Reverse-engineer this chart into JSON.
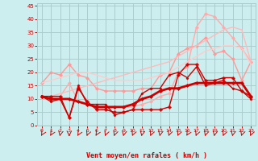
{
  "x": [
    0,
    1,
    2,
    3,
    4,
    5,
    6,
    7,
    8,
    9,
    10,
    11,
    12,
    13,
    14,
    15,
    16,
    17,
    18,
    19,
    20,
    21,
    22,
    23
  ],
  "series": [
    {
      "name": "line1_light_pink",
      "color": "#ff9999",
      "lw": 1.0,
      "marker": "D",
      "ms": 2.0,
      "y": [
        16,
        20,
        19,
        23,
        19,
        18,
        14,
        13,
        13,
        13,
        13,
        14,
        14,
        19,
        20,
        27,
        29,
        30,
        33,
        27,
        28,
        25,
        17,
        24
      ]
    },
    {
      "name": "line2_light_peak",
      "color": "#ffaaaa",
      "lw": 1.0,
      "marker": "D",
      "ms": 2.0,
      "y": [
        11,
        11,
        11,
        16,
        9,
        8,
        7,
        6,
        7,
        7,
        7,
        8,
        9,
        11,
        12,
        20,
        22,
        37,
        42,
        41,
        37,
        33,
        29,
        24
      ]
    },
    {
      "name": "line3_trend_upper",
      "color": "#ffbbbb",
      "lw": 1.0,
      "marker": null,
      "ms": 0,
      "y": [
        10,
        11,
        12,
        13,
        14,
        15,
        16,
        17,
        18,
        19,
        20,
        21,
        22,
        23,
        24,
        26,
        28,
        30,
        32,
        34,
        36,
        37,
        36,
        24
      ]
    },
    {
      "name": "line4_trend_lower",
      "color": "#ffcccc",
      "lw": 1.0,
      "marker": null,
      "ms": 0,
      "y": [
        16,
        17,
        18,
        19,
        20,
        20,
        19,
        18,
        17,
        17,
        17,
        17,
        18,
        19,
        20,
        22,
        24,
        26,
        28,
        29,
        30,
        30,
        29,
        23
      ]
    },
    {
      "name": "line5_dark_thick",
      "color": "#cc0000",
      "lw": 2.0,
      "marker": "D",
      "ms": 2.0,
      "y": [
        11,
        10,
        10,
        10,
        9,
        8,
        7,
        7,
        7,
        7,
        8,
        10,
        11,
        13,
        14,
        14,
        15,
        16,
        16,
        16,
        16,
        16,
        16,
        11
      ]
    },
    {
      "name": "line6_dark_cross",
      "color": "#cc0000",
      "lw": 1.0,
      "marker": "P",
      "ms": 2.5,
      "y": [
        11,
        11,
        11,
        3,
        14,
        9,
        6,
        6,
        5,
        5,
        6,
        6,
        6,
        6,
        7,
        19,
        23,
        23,
        17,
        17,
        18,
        18,
        13,
        11
      ]
    },
    {
      "name": "line7_dark_thin",
      "color": "#cc0000",
      "lw": 1.0,
      "marker": "D",
      "ms": 1.5,
      "y": [
        11,
        9,
        10,
        3,
        15,
        8,
        8,
        8,
        4,
        5,
        6,
        12,
        14,
        14,
        19,
        20,
        18,
        22,
        15,
        16,
        17,
        14,
        13,
        10
      ]
    }
  ],
  "xlim": [
    -0.5,
    23.5
  ],
  "ylim": [
    0,
    46
  ],
  "yticks": [
    0,
    5,
    10,
    15,
    20,
    25,
    30,
    35,
    40,
    45
  ],
  "xticks": [
    0,
    1,
    2,
    3,
    4,
    5,
    6,
    7,
    8,
    9,
    10,
    11,
    12,
    13,
    14,
    15,
    16,
    17,
    18,
    19,
    20,
    21,
    22,
    23
  ],
  "xlabel": "Vent moyen/en rafales ( km/h )",
  "xlabel_color": "#cc0000",
  "bg_color": "#cceeee",
  "grid_color": "#aacccc",
  "tick_color": "#cc0000",
  "wind_angles": [
    225,
    225,
    200,
    180,
    225,
    215,
    225,
    215,
    210,
    200,
    215,
    200,
    215,
    200,
    210,
    215,
    225,
    215,
    210,
    200,
    215,
    200,
    210,
    215
  ]
}
